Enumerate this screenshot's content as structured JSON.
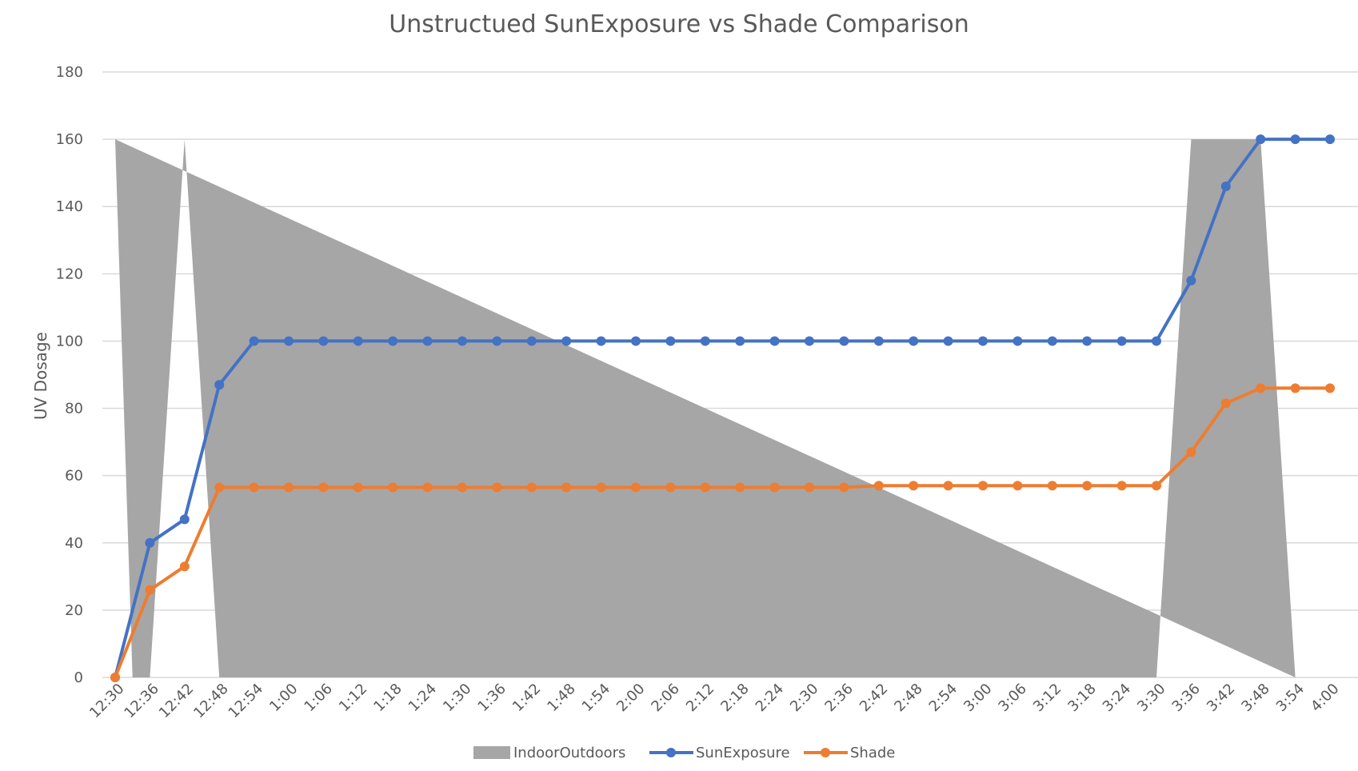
{
  "chart_data": {
    "type": "line",
    "title": "Unstructued SunExposure vs Shade Comparison",
    "xlabel": "",
    "ylabel": "UV Dosage",
    "ylim": [
      0,
      180
    ],
    "yticks": [
      0,
      20,
      40,
      60,
      80,
      100,
      120,
      140,
      160,
      180
    ],
    "grid": true,
    "legend_position": "bottom",
    "categories": [
      "12:30",
      "12:36",
      "12:42",
      "12:48",
      "12:54",
      "1:00",
      "1:06",
      "1:12",
      "1:18",
      "1:24",
      "1:30",
      "1:36",
      "1:42",
      "1:48",
      "1:54",
      "2:00",
      "2:06",
      "2:12",
      "2:18",
      "2:24",
      "2:30",
      "2:36",
      "2:42",
      "2:48",
      "2:54",
      "3:00",
      "3:06",
      "3:12",
      "3:18",
      "3:24",
      "3:30",
      "3:36",
      "3:42",
      "3:48",
      "3:54",
      "4:00"
    ],
    "series": [
      {
        "name": "IndoorOutdoors",
        "kind": "area",
        "color": "#a6a6a6",
        "x": [
          0,
          0.5,
          1.0,
          2.0,
          3.0,
          3.25,
          30.0,
          31.0,
          33.0,
          34.0
        ],
        "values": [
          160,
          0,
          0,
          160,
          0,
          0,
          0,
          160,
          160,
          0
        ]
      },
      {
        "name": "SunExposure",
        "kind": "line",
        "color": "#4472c4",
        "values": [
          0,
          40,
          47,
          87,
          100,
          100,
          100,
          100,
          100,
          100,
          100,
          100,
          100,
          100,
          100,
          100,
          100,
          100,
          100,
          100,
          100,
          100,
          100,
          100,
          100,
          100,
          100,
          100,
          100,
          100,
          100,
          118,
          146,
          160,
          160,
          160
        ]
      },
      {
        "name": "Shade",
        "kind": "line",
        "color": "#ed7d31",
        "values": [
          0,
          26,
          33,
          56.5,
          56.5,
          56.5,
          56.5,
          56.5,
          56.5,
          56.5,
          56.5,
          56.5,
          56.5,
          56.5,
          56.5,
          56.5,
          56.5,
          56.5,
          56.5,
          56.5,
          56.5,
          56.5,
          57,
          57,
          57,
          57,
          57,
          57,
          57,
          57,
          57,
          67,
          81.5,
          86,
          86,
          86
        ]
      }
    ]
  }
}
